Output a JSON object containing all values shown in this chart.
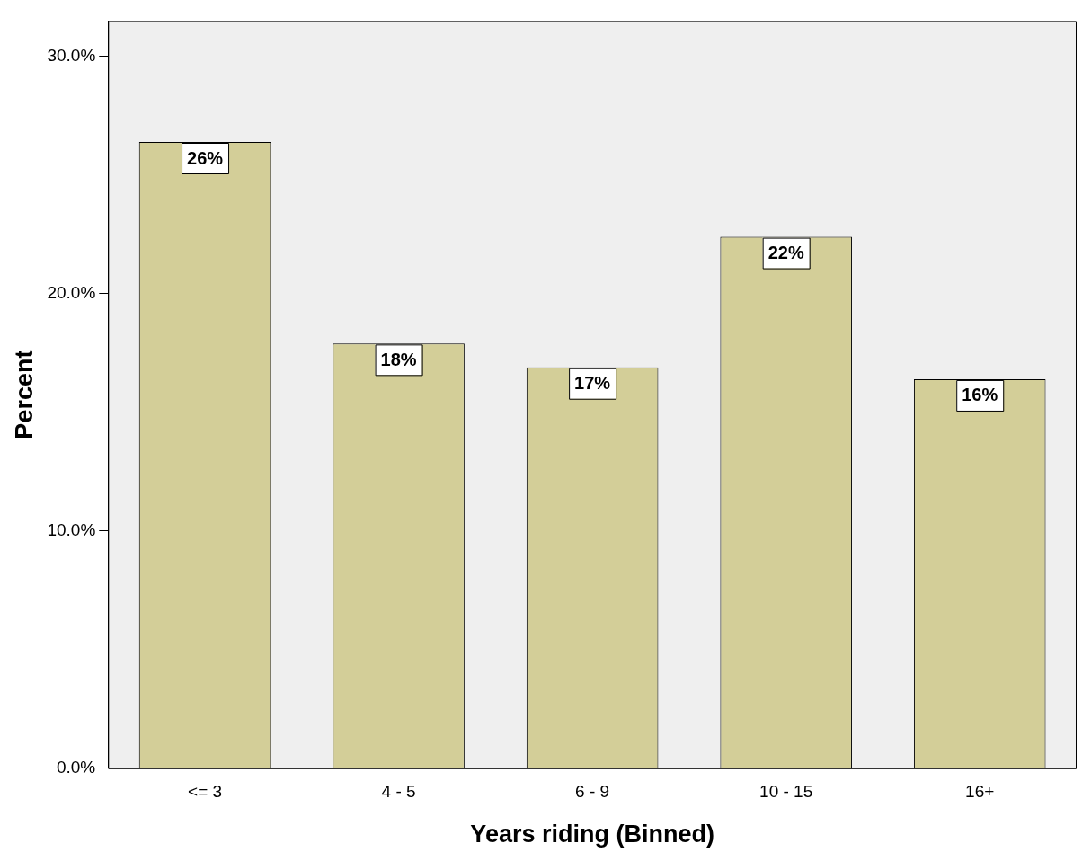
{
  "chart_data": {
    "type": "bar",
    "xlabel": "Years riding (Binned)",
    "ylabel": "Percent",
    "categories": [
      "<= 3",
      "4 - 5",
      "6 - 9",
      "10 - 15",
      "16+"
    ],
    "values": [
      26.4,
      17.9,
      16.9,
      22.4,
      16.4
    ],
    "value_labels": [
      "26%",
      "18%",
      "17%",
      "22%",
      "16%"
    ],
    "color": "#d3ce98",
    "ylim": [
      0,
      31.5
    ],
    "yticks": [
      {
        "value": 0,
        "label": "0.0%"
      },
      {
        "value": 10,
        "label": "10.0%"
      },
      {
        "value": 20,
        "label": "20.0%"
      },
      {
        "value": 30,
        "label": "30.0%"
      }
    ],
    "grid": false,
    "legend": false
  }
}
